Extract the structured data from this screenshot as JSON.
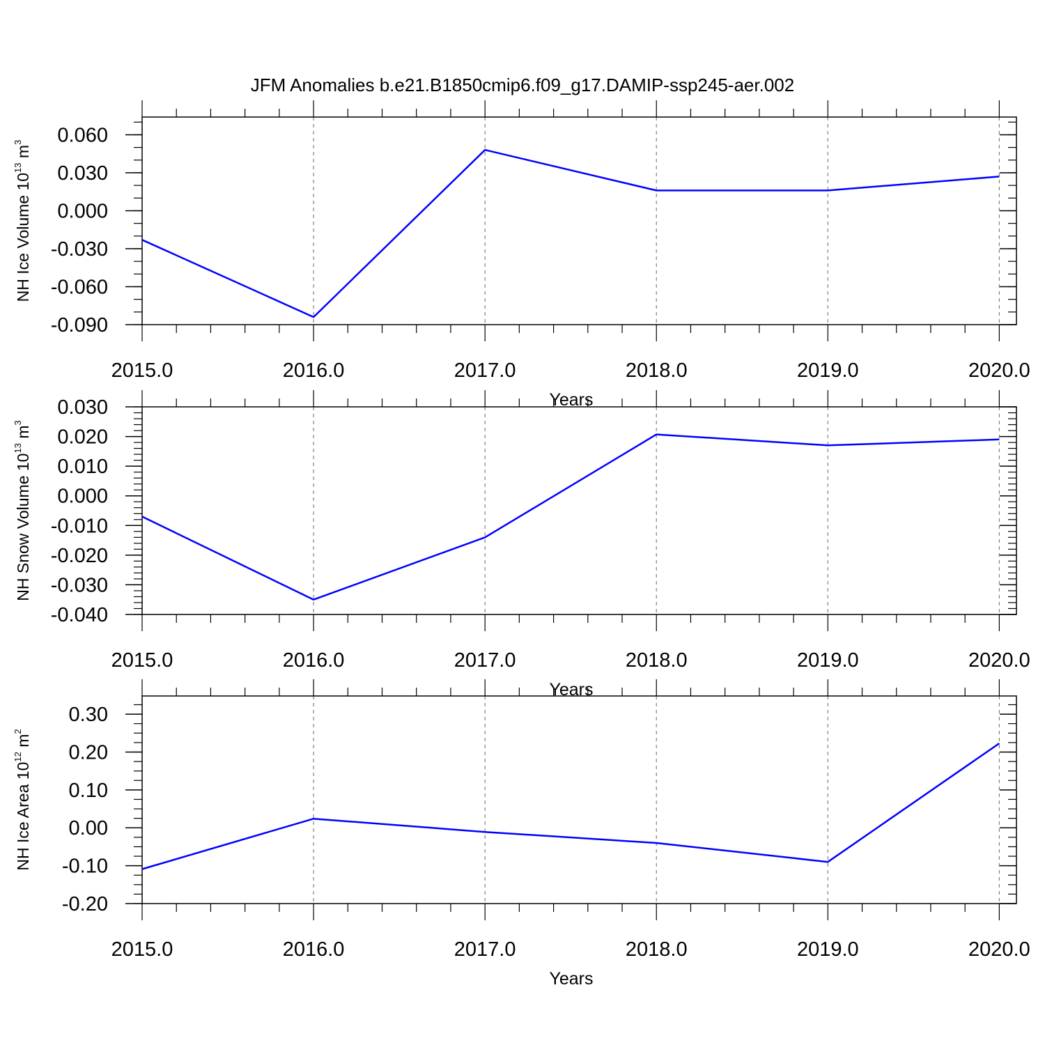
{
  "figure": {
    "title": "JFM Anomalies b.e21.B1850cmip6.f09_g17.DAMIP-ssp245-aer.002"
  },
  "chart_data": [
    {
      "type": "line",
      "xlabel": "Years",
      "ylabel": {
        "text": "NH Ice Volume 10",
        "exponent": "13",
        "unit": "m",
        "unit_exponent": "3"
      },
      "x": [
        2015,
        2016,
        2017,
        2018,
        2019,
        2020
      ],
      "series": [
        {
          "values": [
            -0.023,
            -0.084,
            0.048,
            0.016,
            0.016,
            0.027
          ],
          "color": "#0000ff"
        }
      ],
      "xlim": [
        2015,
        2020.1
      ],
      "ylim": [
        -0.09,
        0.074
      ],
      "yticks": [
        -0.09,
        -0.06,
        -0.03,
        0.0,
        0.03,
        0.06
      ],
      "ytick_labels": [
        "-0.090",
        "-0.060",
        "-0.030",
        "0.000",
        "0.030",
        "0.060"
      ],
      "xticks": [
        2015,
        2016,
        2017,
        2018,
        2019,
        2020
      ],
      "xtick_labels": [
        "2015.0",
        "2016.0",
        "2017.0",
        "2018.0",
        "2019.0",
        "2020.0"
      ],
      "y_minor_step": 0.01,
      "grid": "vertical dashed at major x ticks"
    },
    {
      "type": "line",
      "xlabel": "Years",
      "ylabel": {
        "text": "NH Snow Volume 10",
        "exponent": "13",
        "unit": "m",
        "unit_exponent": "3"
      },
      "x": [
        2015,
        2016,
        2017,
        2018,
        2019,
        2020
      ],
      "series": [
        {
          "values": [
            -0.007,
            -0.035,
            -0.014,
            0.0207,
            0.017,
            0.019
          ],
          "color": "#0000ff"
        }
      ],
      "xlim": [
        2015,
        2020.1
      ],
      "ylim": [
        -0.04,
        0.03
      ],
      "yticks": [
        -0.04,
        -0.03,
        -0.02,
        -0.01,
        0.0,
        0.01,
        0.02,
        0.03
      ],
      "ytick_labels": [
        "-0.040",
        "-0.030",
        "-0.020",
        "-0.010",
        "0.000",
        "0.010",
        "0.020",
        "0.030"
      ],
      "xticks": [
        2015,
        2016,
        2017,
        2018,
        2019,
        2020
      ],
      "xtick_labels": [
        "2015.0",
        "2016.0",
        "2017.0",
        "2018.0",
        "2019.0",
        "2020.0"
      ],
      "y_minor_step": 0.002,
      "grid": "vertical dashed at major x ticks"
    },
    {
      "type": "line",
      "xlabel": "Years",
      "ylabel": {
        "text": "NH Ice Area 10",
        "exponent": "12",
        "unit": "m",
        "unit_exponent": "2"
      },
      "x": [
        2015,
        2016,
        2017,
        2018,
        2019,
        2020
      ],
      "series": [
        {
          "values": [
            -0.109,
            0.024,
            -0.011,
            -0.04,
            -0.09,
            0.223
          ],
          "color": "#0000ff"
        }
      ],
      "xlim": [
        2015,
        2020.1
      ],
      "ylim": [
        -0.2,
        0.348
      ],
      "yticks": [
        -0.2,
        -0.1,
        0.0,
        0.1,
        0.2,
        0.3
      ],
      "ytick_labels": [
        "-0.20",
        "-0.10",
        "0.00",
        "0.10",
        "0.20",
        "0.30"
      ],
      "xticks": [
        2015,
        2016,
        2017,
        2018,
        2019,
        2020
      ],
      "xtick_labels": [
        "2015.0",
        "2016.0",
        "2017.0",
        "2018.0",
        "2019.0",
        "2020.0"
      ],
      "y_minor_step": 0.025,
      "grid": "vertical dashed at major x ticks"
    }
  ]
}
